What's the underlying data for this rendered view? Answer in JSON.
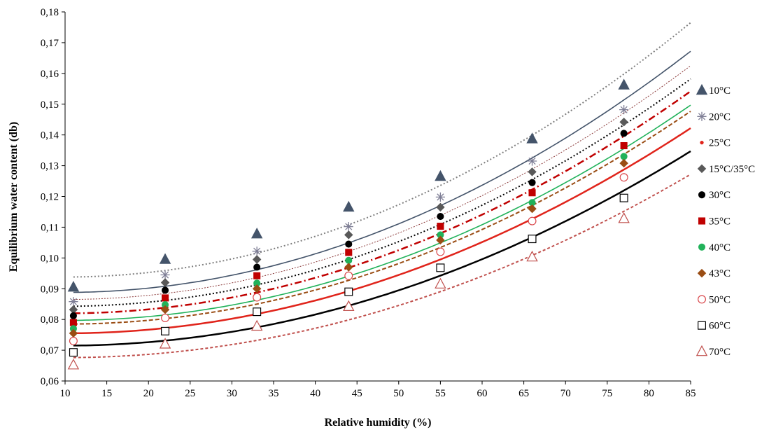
{
  "chart_data": {
    "type": "scatter",
    "title": "",
    "xlabel": "Relative humidity (%)",
    "ylabel": "Equilibrium water content (db)",
    "xlim": [
      10,
      85
    ],
    "ylim": [
      0.06,
      0.18
    ],
    "x_ticks": [
      "10",
      "15",
      "20",
      "25",
      "30",
      "35",
      "40",
      "45",
      "50",
      "55",
      "60",
      "65",
      "70",
      "75",
      "80",
      "85"
    ],
    "y_ticks": [
      "0,06",
      "0,07",
      "0,08",
      "0,09",
      "0,10",
      "0,11",
      "0,12",
      "0,13",
      "0,14",
      "0,15",
      "0,16",
      "0,17",
      "0,18"
    ],
    "grid": false,
    "legend_position": "right",
    "x": [
      11,
      22,
      33,
      44,
      55,
      66,
      77
    ],
    "series": [
      {
        "name": "10°C",
        "marker": "triangle-filled",
        "color": "#44546a",
        "values": [
          0.0905,
          0.0995,
          0.1078,
          0.1165,
          0.1265,
          0.1387,
          0.1562
        ]
      },
      {
        "name": "20°C",
        "marker": "asterisk",
        "color": "#7f7f96",
        "values": [
          0.0858,
          0.0945,
          0.1022,
          0.1102,
          0.1198,
          0.1315,
          0.1482
        ]
      },
      {
        "name": "25°C",
        "marker": "dot-small",
        "color": "#e0241b",
        "values": [],
        "fit_only": true
      },
      {
        "name": "15°C/35°C",
        "marker": "diamond-filled",
        "color": "#595959",
        "values": [
          0.0832,
          0.092,
          0.0995,
          0.1075,
          0.1165,
          0.128,
          0.1442
        ]
      },
      {
        "name": "30°C",
        "marker": "circle-filled",
        "color": "#000000",
        "values": [
          0.0812,
          0.0895,
          0.097,
          0.1045,
          0.1135,
          0.1245,
          0.1405
        ]
      },
      {
        "name": "35°C",
        "marker": "square-filled",
        "color": "#c00000",
        "values": [
          0.079,
          0.087,
          0.0942,
          0.1018,
          0.1103,
          0.1212,
          0.1365
        ]
      },
      {
        "name": "40°C",
        "marker": "circle-filled",
        "color": "#21b25a",
        "values": [
          0.077,
          0.0848,
          0.0918,
          0.0992,
          0.1075,
          0.118,
          0.133
        ]
      },
      {
        "name": "43°C",
        "marker": "diamond-filled",
        "color": "#9a4d14",
        "values": [
          0.0755,
          0.0832,
          0.09,
          0.097,
          0.1058,
          0.116,
          0.1308
        ]
      },
      {
        "name": "50°C",
        "marker": "circle-open",
        "color": "#d9464a",
        "values": [
          0.073,
          0.0805,
          0.0872,
          0.0942,
          0.102,
          0.112,
          0.1262
        ]
      },
      {
        "name": "60°C",
        "marker": "square-open",
        "color": "#000000",
        "values": [
          0.0693,
          0.0762,
          0.0825,
          0.089,
          0.0968,
          0.1062,
          0.1195
        ]
      },
      {
        "name": "70°C",
        "marker": "triangle-open",
        "color": "#c0504d",
        "values": [
          0.0652,
          0.072,
          0.0778,
          0.0842,
          0.0915,
          0.1003,
          0.1128
        ]
      }
    ],
    "fit_curves": [
      {
        "color": "#7f7f7f",
        "dash": "2,3",
        "width": 2,
        "y_start": 0.0938,
        "y_end": 0.1765
      },
      {
        "color": "#44546a",
        "dash": "",
        "width": 1.6,
        "y_start": 0.0888,
        "y_end": 0.1672
      },
      {
        "color": "#8b3a3a",
        "dash": "2,2",
        "width": 1,
        "y_start": 0.0865,
        "y_end": 0.1625
      },
      {
        "color": "#000000",
        "dash": "2,3",
        "width": 2,
        "y_start": 0.0843,
        "y_end": 0.1582
      },
      {
        "color": "#c00000",
        "dash": "10,4,2,4",
        "width": 2.5,
        "y_start": 0.082,
        "y_end": 0.1542
      },
      {
        "color": "#21b25a",
        "dash": "",
        "width": 1.6,
        "y_start": 0.0797,
        "y_end": 0.1497
      },
      {
        "color": "#9a4d14",
        "dash": "6,3",
        "width": 2,
        "y_start": 0.0785,
        "y_end": 0.1477
      },
      {
        "color": "#e0241b",
        "dash": "",
        "width": 2.5,
        "y_start": 0.0755,
        "y_end": 0.1422
      },
      {
        "color": "#000000",
        "dash": "",
        "width": 2.5,
        "y_start": 0.0715,
        "y_end": 0.1347
      },
      {
        "color": "#c0504d",
        "dash": "4,3",
        "width": 2,
        "y_start": 0.0676,
        "y_end": 0.1272
      }
    ]
  }
}
